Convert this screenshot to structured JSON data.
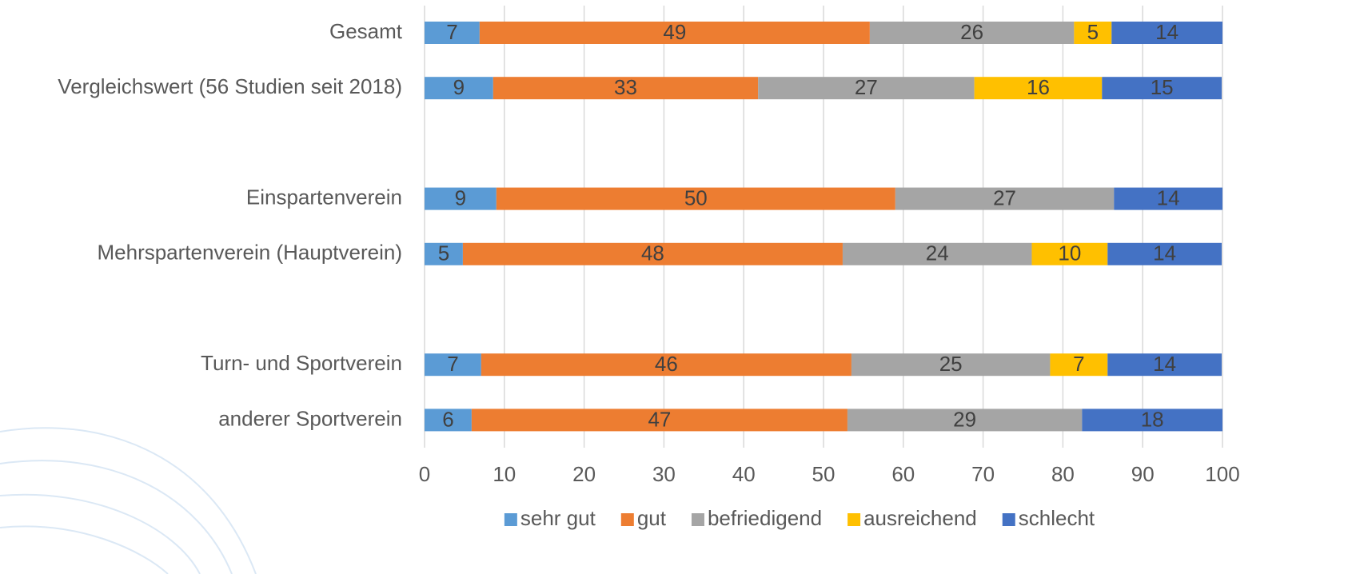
{
  "chart_data": {
    "type": "stacked-bar-horizontal",
    "categories": [
      "Gesamt",
      "Vergleichswert (56 Studien seit 2018)",
      null,
      "Einspartenverein",
      "Mehrspartenverein (Hauptverein)",
      null,
      "Turn- und Sportverein",
      "anderer Sportverein"
    ],
    "series": [
      {
        "name": "sehr gut",
        "color": "#5b9bd5",
        "values": [
          6.9,
          8.6,
          null,
          9.0,
          4.8,
          null,
          7.1,
          5.9
        ],
        "value_labels": [
          "7",
          "9",
          null,
          "9",
          "5",
          null,
          "7",
          "6"
        ]
      },
      {
        "name": "gut",
        "color": "#ed7d31",
        "values": [
          48.9,
          33.2,
          null,
          50.0,
          47.6,
          null,
          46.4,
          47.1
        ],
        "value_labels": [
          "49",
          "33",
          null,
          "50",
          "48",
          null,
          "46",
          "47"
        ]
      },
      {
        "name": "befriedigend",
        "color": "#a5a5a5",
        "values": [
          25.6,
          27.1,
          null,
          27.4,
          23.7,
          null,
          24.9,
          29.4
        ],
        "value_labels": [
          "26",
          "27",
          null,
          "27",
          "24",
          null,
          "25",
          "29"
        ]
      },
      {
        "name": "ausreichend",
        "color": "#ffc000",
        "values": [
          4.7,
          16.0,
          null,
          null,
          9.5,
          null,
          7.2,
          null
        ],
        "value_labels": [
          "5",
          "16",
          null,
          null,
          "10",
          null,
          "7",
          null
        ]
      },
      {
        "name": "schlecht",
        "color": "#4472c4",
        "values": [
          13.9,
          15,
          null,
          13.6,
          14.3,
          null,
          14.3,
          17.6
        ],
        "value_labels": [
          "14",
          "15",
          null,
          "14",
          "14",
          null,
          "14",
          "18"
        ]
      }
    ],
    "xlim": [
      0,
      100
    ],
    "xticks": [
      0,
      10,
      20,
      30,
      40,
      50,
      60,
      70,
      80,
      90,
      100
    ],
    "grid": true,
    "legend": "bottom"
  }
}
